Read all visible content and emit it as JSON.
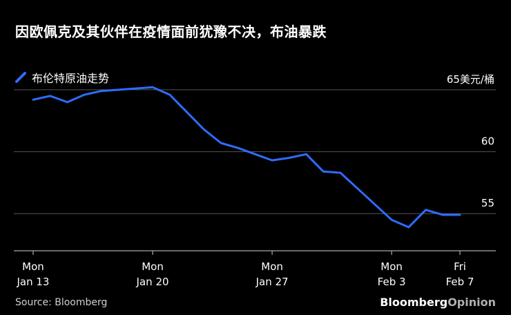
{
  "title": "因欧佩克及其伙伴在疫情面前犹豫不决，布油暴跌",
  "source": "Source: Bloomberg",
  "brand": {
    "bold": "Bloomberg",
    "light": "Opinion"
  },
  "colors": {
    "line": "#2e6cff",
    "grid": "#555555",
    "background": "#000000"
  },
  "chart_data": {
    "type": "line",
    "ylim": [
      52,
      66
    ],
    "y_ticks": [
      {
        "value": 65,
        "label": "65美元/桶"
      },
      {
        "value": 60,
        "label": "60"
      },
      {
        "value": 55,
        "label": "55"
      }
    ],
    "x_ticks": [
      {
        "date": "2020-01-13",
        "line1": "Mon",
        "line2": "Jan 13"
      },
      {
        "date": "2020-01-20",
        "line1": "Mon",
        "line2": "Jan 20"
      },
      {
        "date": "2020-01-27",
        "line1": "Mon",
        "line2": "Jan 27"
      },
      {
        "date": "2020-02-03",
        "line1": "Mon",
        "line2": "Feb 3"
      },
      {
        "date": "2020-02-07",
        "line1": "Fri",
        "line2": "Feb 7"
      }
    ],
    "series": [
      {
        "name": "布伦特原油走势",
        "points": [
          {
            "x": "2020-01-13",
            "y": 64.2
          },
          {
            "x": "2020-01-14",
            "y": 64.5
          },
          {
            "x": "2020-01-15",
            "y": 64.0
          },
          {
            "x": "2020-01-16",
            "y": 64.6
          },
          {
            "x": "2020-01-17",
            "y": 64.9
          },
          {
            "x": "2020-01-19",
            "y": 65.1
          },
          {
            "x": "2020-01-20",
            "y": 65.2
          },
          {
            "x": "2020-01-21",
            "y": 64.6
          },
          {
            "x": "2020-01-22",
            "y": 63.2
          },
          {
            "x": "2020-01-23",
            "y": 61.8
          },
          {
            "x": "2020-01-24",
            "y": 60.7
          },
          {
            "x": "2020-01-25",
            "y": 60.3
          },
          {
            "x": "2020-01-27",
            "y": 59.3
          },
          {
            "x": "2020-01-28",
            "y": 59.5
          },
          {
            "x": "2020-01-29",
            "y": 59.8
          },
          {
            "x": "2020-01-30",
            "y": 58.4
          },
          {
            "x": "2020-01-31",
            "y": 58.3
          },
          {
            "x": "2020-02-03",
            "y": 54.5
          },
          {
            "x": "2020-02-04",
            "y": 53.9
          },
          {
            "x": "2020-02-05",
            "y": 55.3
          },
          {
            "x": "2020-02-06",
            "y": 54.9
          },
          {
            "x": "2020-02-07",
            "y": 54.9
          }
        ]
      }
    ]
  }
}
